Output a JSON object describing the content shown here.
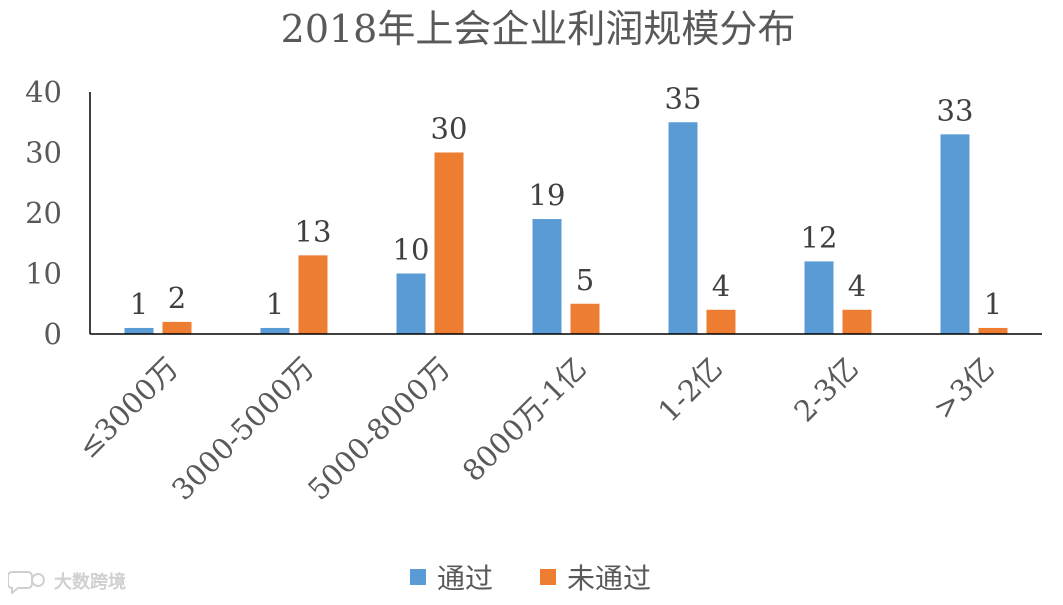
{
  "chart_data": {
    "type": "bar",
    "title": "2018年上会企业利润规模分布",
    "categories": [
      "≤3000万",
      "3000-5000万",
      "5000-8000万",
      "8000万-1亿",
      "1-2亿",
      "2-3亿",
      ">3亿"
    ],
    "series": [
      {
        "name": "通过",
        "color": "#5b9bd5",
        "values": [
          1,
          1,
          10,
          19,
          35,
          12,
          33
        ]
      },
      {
        "name": "未通过",
        "color": "#ed7d31",
        "values": [
          2,
          13,
          30,
          5,
          4,
          4,
          1
        ]
      }
    ],
    "ylim": [
      0,
      40
    ],
    "yticks": [
      0,
      10,
      20,
      30,
      40
    ],
    "xlabel": "",
    "ylabel": "",
    "grid": false,
    "legend_position": "bottom",
    "data_labels": true
  },
  "watermark": {
    "text": "大数跨境",
    "icon": "speech-bubble-logo-icon"
  }
}
